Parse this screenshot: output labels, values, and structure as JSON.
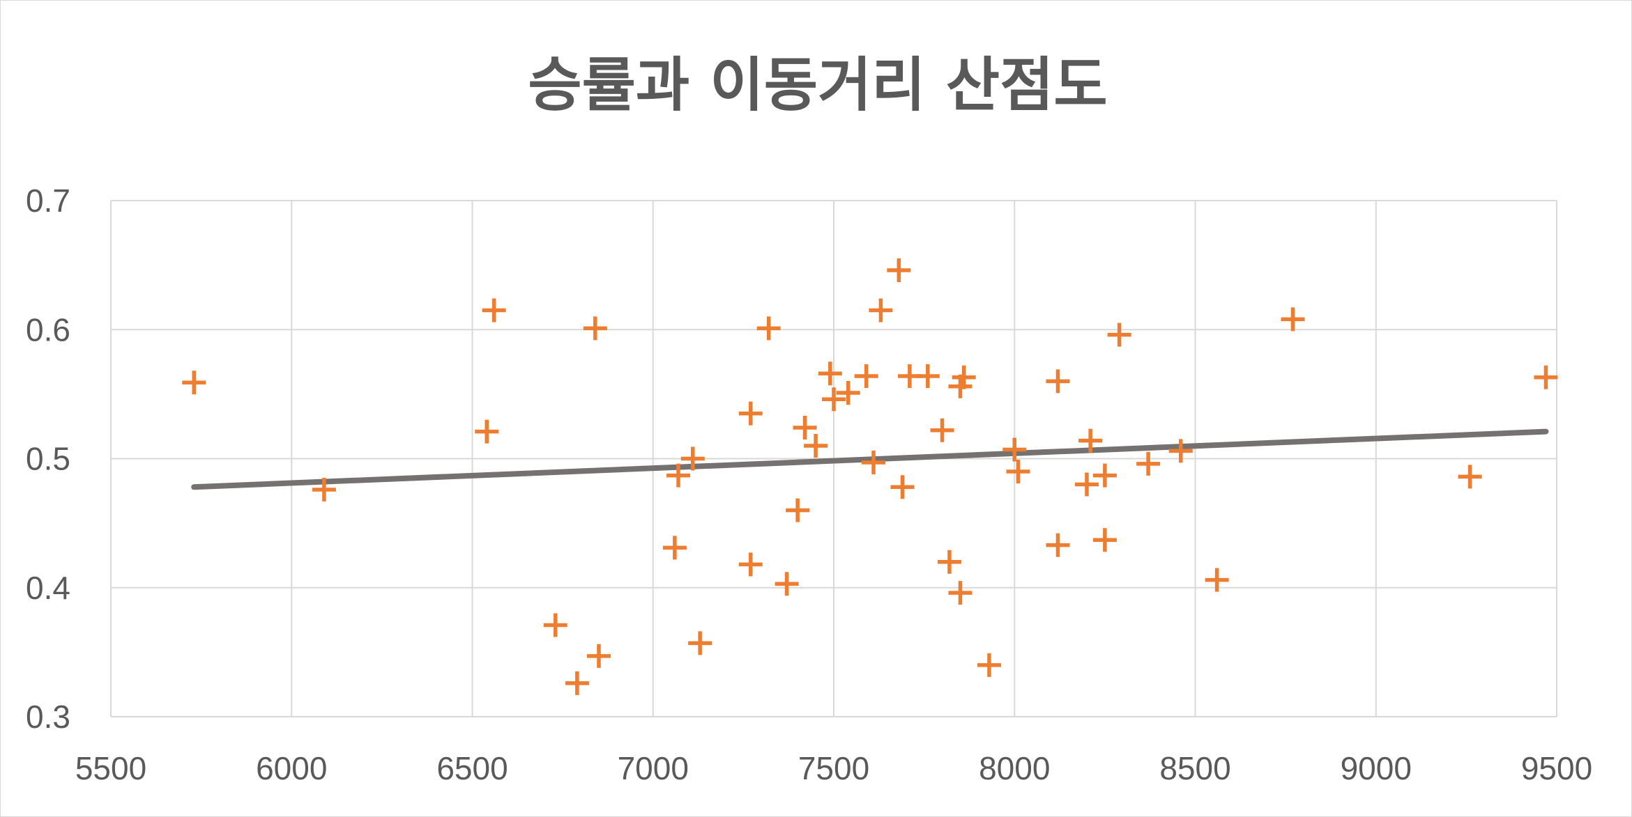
{
  "chart_data": {
    "type": "scatter",
    "title": "승률과 이동거리 산점도",
    "xlabel": "",
    "ylabel": "",
    "xlim": [
      5500,
      9500
    ],
    "ylim": [
      0.3,
      0.7
    ],
    "x_ticks": [
      "5500",
      "6000",
      "6500",
      "7000",
      "7500",
      "8000",
      "8500",
      "9000",
      "9500"
    ],
    "y_ticks": [
      "0.3",
      "0.4",
      "0.5",
      "0.6",
      "0.7"
    ],
    "grid": true,
    "legend": "none",
    "series": [
      {
        "marker": "plus",
        "color": "#ed7d31",
        "points": [
          [
            5730,
            0.559
          ],
          [
            6090,
            0.476
          ],
          [
            6540,
            0.521
          ],
          [
            6560,
            0.615
          ],
          [
            6730,
            0.371
          ],
          [
            6790,
            0.326
          ],
          [
            6840,
            0.601
          ],
          [
            6850,
            0.347
          ],
          [
            7060,
            0.431
          ],
          [
            7070,
            0.487
          ],
          [
            7110,
            0.5
          ],
          [
            7130,
            0.357
          ],
          [
            7270,
            0.535
          ],
          [
            7270,
            0.418
          ],
          [
            7320,
            0.601
          ],
          [
            7370,
            0.403
          ],
          [
            7400,
            0.46
          ],
          [
            7420,
            0.524
          ],
          [
            7450,
            0.51
          ],
          [
            7490,
            0.566
          ],
          [
            7500,
            0.546
          ],
          [
            7540,
            0.551
          ],
          [
            7590,
            0.564
          ],
          [
            7610,
            0.497
          ],
          [
            7630,
            0.615
          ],
          [
            7680,
            0.646
          ],
          [
            7690,
            0.478
          ],
          [
            7710,
            0.564
          ],
          [
            7760,
            0.564
          ],
          [
            7800,
            0.522
          ],
          [
            7820,
            0.42
          ],
          [
            7850,
            0.396
          ],
          [
            7850,
            0.556
          ],
          [
            7860,
            0.563
          ],
          [
            7930,
            0.34
          ],
          [
            8000,
            0.507
          ],
          [
            8010,
            0.49
          ],
          [
            8120,
            0.433
          ],
          [
            8120,
            0.56
          ],
          [
            8200,
            0.48
          ],
          [
            8210,
            0.514
          ],
          [
            8250,
            0.487
          ],
          [
            8250,
            0.437
          ],
          [
            8290,
            0.596
          ],
          [
            8370,
            0.496
          ],
          [
            8460,
            0.506
          ],
          [
            8560,
            0.406
          ],
          [
            8770,
            0.608
          ],
          [
            9260,
            0.486
          ],
          [
            9470,
            0.563
          ]
        ]
      }
    ],
    "trendline": {
      "type": "linear",
      "x": [
        5730,
        9470
      ],
      "y": [
        0.478,
        0.521
      ],
      "color": "#767171"
    }
  }
}
